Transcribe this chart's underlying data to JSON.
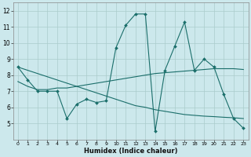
{
  "xlabel": "Humidex (Indice chaleur)",
  "bg_color": "#cce8ec",
  "grid_color": "#aacccc",
  "line_color": "#1a6e6a",
  "xlim_min": -0.5,
  "xlim_max": 23.5,
  "ylim_min": 4.0,
  "ylim_max": 12.5,
  "xticks": [
    0,
    1,
    2,
    3,
    4,
    5,
    6,
    7,
    8,
    9,
    10,
    11,
    12,
    13,
    14,
    15,
    16,
    17,
    18,
    19,
    20,
    21,
    22,
    23
  ],
  "yticks": [
    5,
    6,
    7,
    8,
    9,
    10,
    11,
    12
  ],
  "line1_y": [
    8.5,
    7.7,
    7.0,
    7.0,
    7.0,
    5.3,
    6.2,
    6.5,
    6.3,
    6.4,
    9.7,
    11.1,
    11.8,
    11.8,
    4.5,
    8.3,
    9.8,
    11.3,
    8.3,
    9.0,
    8.5,
    6.8,
    5.3,
    4.7
  ],
  "line2_y": [
    7.6,
    7.3,
    7.1,
    7.1,
    7.2,
    7.2,
    7.3,
    7.4,
    7.5,
    7.6,
    7.7,
    7.8,
    7.9,
    8.0,
    8.1,
    8.15,
    8.2,
    8.25,
    8.3,
    8.35,
    8.4,
    8.4,
    8.4,
    8.35
  ],
  "line3_y": [
    8.5,
    8.3,
    8.1,
    7.9,
    7.7,
    7.5,
    7.3,
    7.1,
    6.9,
    6.7,
    6.5,
    6.3,
    6.1,
    6.0,
    5.85,
    5.75,
    5.65,
    5.55,
    5.5,
    5.45,
    5.42,
    5.38,
    5.35,
    5.3
  ]
}
